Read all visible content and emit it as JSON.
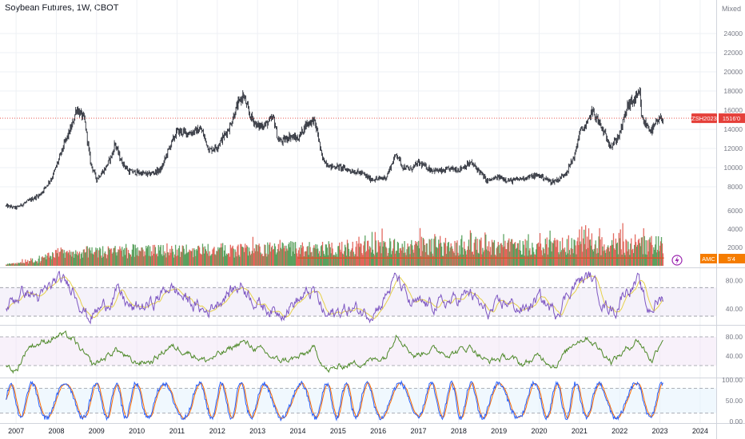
{
  "chart_title": "Soybean Futures, 1W, CBOT",
  "scale_mode": "Mixed",
  "colors": {
    "price": "#131722",
    "up": "#4e9a52",
    "down": "#e05a4f",
    "volume_ma": "#d7572b",
    "rsi": "#7e57c2",
    "rsi_signal": "#e6d14a",
    "osc2": "#4f8a2b",
    "stoch_k": "#2962ff",
    "stoch_d": "#ff6d00",
    "grid": "#eef0f4",
    "marker_red": "#e5403a",
    "marker_orange": "#f57c00"
  },
  "last_price": {
    "symbol": "ZSH2023",
    "value": "1516'0"
  },
  "volume_marker": {
    "label": "AMC",
    "value": "5'4"
  },
  "chart_data": [
    {
      "type": "line",
      "name": "price",
      "x_start": 2006.75,
      "x_end": 2023.1,
      "ylim": [
        4000,
        26000
      ],
      "y_ticks": [
        "8000",
        "10000",
        "12000",
        "14000",
        "16000",
        "18000",
        "20000",
        "22000",
        "24000"
      ],
      "y_tick_values": [
        8000,
        10000,
        12000,
        14000,
        16000,
        18000,
        20000,
        22000,
        24000
      ],
      "x_ticks": [
        "2007",
        "2008",
        "2009",
        "2010",
        "2011",
        "2012",
        "2013",
        "2014",
        "2015",
        "2016",
        "2017",
        "2018",
        "2019",
        "2020",
        "2021",
        "2022",
        "2023",
        "2024"
      ],
      "x_tick_values": [
        2007,
        2008,
        2009,
        2010,
        2011,
        2012,
        2013,
        2014,
        2015,
        2016,
        2017,
        2018,
        2019,
        2020,
        2021,
        2022,
        2023,
        2024
      ],
      "points": [
        [
          2006.75,
          6000
        ],
        [
          2007.0,
          5800
        ],
        [
          2007.3,
          6500
        ],
        [
          2007.6,
          7200
        ],
        [
          2007.9,
          9000
        ],
        [
          2008.2,
          12500
        ],
        [
          2008.4,
          14500
        ],
        [
          2008.5,
          16200
        ],
        [
          2008.7,
          15000
        ],
        [
          2008.85,
          10500
        ],
        [
          2009.0,
          8800
        ],
        [
          2009.2,
          9800
        ],
        [
          2009.4,
          11500
        ],
        [
          2009.45,
          12600
        ],
        [
          2009.6,
          10800
        ],
        [
          2009.8,
          9600
        ],
        [
          2010.0,
          9500
        ],
        [
          2010.3,
          9300
        ],
        [
          2010.6,
          9800
        ],
        [
          2010.8,
          12000
        ],
        [
          2011.0,
          13800
        ],
        [
          2011.3,
          13600
        ],
        [
          2011.6,
          14000
        ],
        [
          2011.8,
          11800
        ],
        [
          2012.0,
          12200
        ],
        [
          2012.3,
          14200
        ],
        [
          2012.5,
          16500
        ],
        [
          2012.65,
          17600
        ],
        [
          2012.8,
          15500
        ],
        [
          2013.0,
          14300
        ],
        [
          2013.2,
          14500
        ],
        [
          2013.4,
          15200
        ],
        [
          2013.5,
          13000
        ],
        [
          2013.6,
          12700
        ],
        [
          2013.8,
          13300
        ],
        [
          2014.0,
          13000
        ],
        [
          2014.2,
          14500
        ],
        [
          2014.4,
          15000
        ],
        [
          2014.5,
          13500
        ],
        [
          2014.6,
          11000
        ],
        [
          2014.8,
          10100
        ],
        [
          2015.0,
          10100
        ],
        [
          2015.3,
          9700
        ],
        [
          2015.6,
          9400
        ],
        [
          2015.8,
          8800
        ],
        [
          2016.0,
          8800
        ],
        [
          2016.2,
          9000
        ],
        [
          2016.45,
          11500
        ],
        [
          2016.6,
          10100
        ],
        [
          2016.8,
          9800
        ],
        [
          2017.0,
          10500
        ],
        [
          2017.3,
          9800
        ],
        [
          2017.6,
          9600
        ],
        [
          2017.8,
          9900
        ],
        [
          2018.0,
          9800
        ],
        [
          2018.3,
          10500
        ],
        [
          2018.5,
          9700
        ],
        [
          2018.7,
          8600
        ],
        [
          2019.0,
          9000
        ],
        [
          2019.3,
          8600
        ],
        [
          2019.5,
          8800
        ],
        [
          2019.7,
          9000
        ],
        [
          2020.0,
          9200
        ],
        [
          2020.3,
          8500
        ],
        [
          2020.5,
          8800
        ],
        [
          2020.7,
          9700
        ],
        [
          2020.9,
          11500
        ],
        [
          2021.0,
          13700
        ],
        [
          2021.2,
          14500
        ],
        [
          2021.3,
          16000
        ],
        [
          2021.45,
          15000
        ],
        [
          2021.6,
          13700
        ],
        [
          2021.8,
          12200
        ],
        [
          2022.0,
          13500
        ],
        [
          2022.2,
          16500
        ],
        [
          2022.4,
          17200
        ],
        [
          2022.5,
          17700
        ],
        [
          2022.55,
          15000
        ],
        [
          2022.7,
          14300
        ],
        [
          2022.8,
          13800
        ],
        [
          2022.9,
          14600
        ],
        [
          2023.0,
          15000
        ],
        [
          2023.1,
          15160
        ]
      ]
    },
    {
      "type": "bar",
      "name": "volume",
      "ylim": [
        0,
        6800
      ],
      "y_ticks": [
        "2000",
        "4000",
        "6000"
      ],
      "y_tick_values": [
        2000,
        4000,
        6000
      ],
      "baseline_values": [
        [
          2006.75,
          150
        ],
        [
          2007.5,
          500
        ],
        [
          2008.0,
          1400
        ],
        [
          2009.0,
          1600
        ],
        [
          2011.0,
          1700
        ],
        [
          2014.0,
          1900
        ],
        [
          2017.0,
          2100
        ],
        [
          2020.0,
          2200
        ],
        [
          2023.1,
          2400
        ]
      ],
      "highs": [
        [
          2007.0,
          600
        ],
        [
          2008.5,
          2000
        ],
        [
          2010.8,
          2800
        ],
        [
          2012.5,
          3500
        ],
        [
          2013.8,
          3300
        ],
        [
          2015.0,
          3000
        ],
        [
          2016.0,
          4500
        ],
        [
          2016.3,
          6000
        ],
        [
          2017.0,
          4300
        ],
        [
          2018.0,
          4200
        ],
        [
          2019.0,
          3700
        ],
        [
          2020.2,
          3900
        ],
        [
          2021.0,
          4500
        ],
        [
          2021.7,
          4800
        ],
        [
          2022.4,
          4600
        ],
        [
          2023.1,
          3000
        ]
      ],
      "moving_average_start": 2014.0,
      "moving_average_value": 850
    },
    {
      "type": "line",
      "name": "rsi",
      "ylim": [
        20,
        95
      ],
      "y_ticks": [
        "40.00",
        "80.00"
      ],
      "y_tick_values": [
        40,
        80
      ],
      "band": [
        30,
        70
      ],
      "points": [
        [
          2006.75,
          45
        ],
        [
          2007.2,
          65
        ],
        [
          2007.6,
          55
        ],
        [
          2008.0,
          80
        ],
        [
          2008.4,
          72
        ],
        [
          2008.8,
          28
        ],
        [
          2009.2,
          45
        ],
        [
          2009.5,
          65
        ],
        [
          2009.9,
          38
        ],
        [
          2010.4,
          48
        ],
        [
          2010.8,
          72
        ],
        [
          2011.2,
          55
        ],
        [
          2011.7,
          35
        ],
        [
          2012.2,
          60
        ],
        [
          2012.6,
          75
        ],
        [
          2013.0,
          48
        ],
        [
          2013.5,
          35
        ],
        [
          2014.0,
          52
        ],
        [
          2014.4,
          65
        ],
        [
          2014.7,
          28
        ],
        [
          2015.2,
          40
        ],
        [
          2015.8,
          36
        ],
        [
          2016.1,
          50
        ],
        [
          2016.45,
          85
        ],
        [
          2016.8,
          45
        ],
        [
          2017.3,
          45
        ],
        [
          2017.8,
          50
        ],
        [
          2018.3,
          62
        ],
        [
          2018.7,
          32
        ],
        [
          2019.2,
          50
        ],
        [
          2019.6,
          38
        ],
        [
          2020.0,
          55
        ],
        [
          2020.4,
          35
        ],
        [
          2020.8,
          70
        ],
        [
          2021.0,
          80
        ],
        [
          2021.3,
          85
        ],
        [
          2021.6,
          48
        ],
        [
          2021.9,
          38
        ],
        [
          2022.1,
          65
        ],
        [
          2022.45,
          78
        ],
        [
          2022.7,
          38
        ],
        [
          2023.1,
          58
        ]
      ]
    },
    {
      "type": "line",
      "name": "oscillator",
      "ylim": [
        0,
        100
      ],
      "y_ticks": [
        "40.00",
        "80.00"
      ],
      "y_tick_values": [
        40,
        80
      ],
      "band": [
        20,
        80
      ],
      "points": [
        [
          2006.75,
          20
        ],
        [
          2007.0,
          8
        ],
        [
          2007.3,
          60
        ],
        [
          2007.7,
          70
        ],
        [
          2008.1,
          85
        ],
        [
          2008.4,
          75
        ],
        [
          2008.9,
          20
        ],
        [
          2009.2,
          35
        ],
        [
          2009.5,
          55
        ],
        [
          2009.9,
          25
        ],
        [
          2010.4,
          30
        ],
        [
          2010.8,
          60
        ],
        [
          2011.2,
          52
        ],
        [
          2011.7,
          30
        ],
        [
          2012.2,
          48
        ],
        [
          2012.6,
          70
        ],
        [
          2013.0,
          55
        ],
        [
          2013.5,
          30
        ],
        [
          2014.0,
          35
        ],
        [
          2014.4,
          55
        ],
        [
          2014.75,
          8
        ],
        [
          2015.2,
          22
        ],
        [
          2015.8,
          30
        ],
        [
          2016.2,
          40
        ],
        [
          2016.45,
          90
        ],
        [
          2016.9,
          40
        ],
        [
          2017.3,
          55
        ],
        [
          2017.8,
          45
        ],
        [
          2018.3,
          60
        ],
        [
          2018.7,
          28
        ],
        [
          2019.2,
          38
        ],
        [
          2019.6,
          22
        ],
        [
          2020.0,
          40
        ],
        [
          2020.4,
          20
        ],
        [
          2020.9,
          72
        ],
        [
          2021.2,
          80
        ],
        [
          2021.5,
          55
        ],
        [
          2021.8,
          30
        ],
        [
          2022.1,
          48
        ],
        [
          2022.45,
          75
        ],
        [
          2022.8,
          30
        ],
        [
          2023.1,
          85
        ]
      ]
    },
    {
      "type": "line",
      "name": "stochastic",
      "ylim": [
        0,
        100
      ],
      "y_ticks": [
        "0.00",
        "50.00",
        "100.00"
      ],
      "y_tick_values": [
        0,
        50,
        100
      ],
      "band": [
        20,
        80
      ]
    }
  ]
}
